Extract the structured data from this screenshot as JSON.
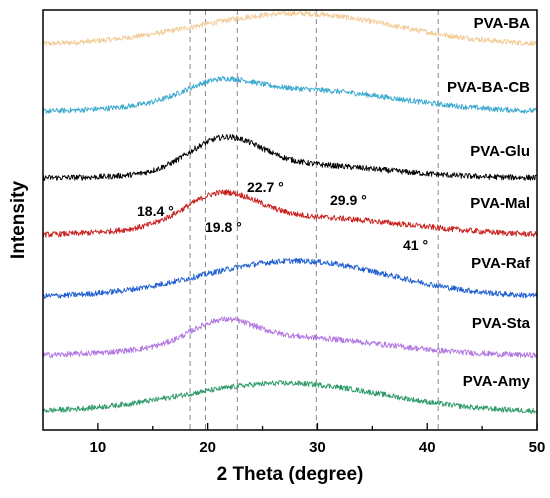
{
  "chart_data": {
    "type": "line",
    "title": "",
    "xlabel": "2 Theta (degree)",
    "ylabel": "Intensity",
    "xlim": [
      5,
      50
    ],
    "xticks": [
      "10",
      "20",
      "30",
      "40",
      "50"
    ],
    "grid": false,
    "legend": "labels placed at right end of each curve",
    "reference_lines_x": [
      18.4,
      19.8,
      22.7,
      29.9,
      41
    ],
    "annotations": [
      {
        "text": "18.4 °",
        "x": 18.4,
        "y": 0.61
      },
      {
        "text": "19.8 °",
        "x": 19.8,
        "y": 0.51
      },
      {
        "text": "22.7 °",
        "x": 22.7,
        "y": 0.84
      },
      {
        "text": "29.9 °",
        "x": 29.9,
        "y": 0.64
      },
      {
        "text": "41 °",
        "x": 41,
        "y": 0.46
      }
    ],
    "series": [
      {
        "name": "PVA-BA",
        "color": "#f1cb97",
        "peaks": [
          {
            "x": 28,
            "h": 0.35,
            "w": 9
          }
        ],
        "x": [
          5,
          10,
          15,
          20,
          25,
          28,
          30,
          35,
          40,
          45,
          50
        ],
        "values": [
          6.0,
          6.03,
          6.08,
          6.17,
          6.29,
          6.35,
          6.34,
          6.25,
          6.13,
          6.06,
          6.02
        ]
      },
      {
        "name": "PVA-BA-CB",
        "color": "#3ba8cf",
        "peaks": [
          {
            "x": 21,
            "h": 0.18,
            "w": 3
          },
          {
            "x": 28,
            "h": 0.25,
            "w": 9
          }
        ],
        "x": [
          5,
          10,
          15,
          20,
          21,
          25,
          28,
          30,
          35,
          40,
          45,
          50
        ],
        "values": [
          5.1,
          5.13,
          5.17,
          5.32,
          5.36,
          5.3,
          5.35,
          5.34,
          5.25,
          5.15,
          5.07,
          5.03
        ]
      },
      {
        "name": "PVA-Glu",
        "color": "#000000",
        "peaks": [
          {
            "x": 21.5,
            "h": 0.33,
            "w": 3.2
          },
          {
            "x": 28,
            "h": 0.14,
            "w": 8
          }
        ],
        "x": [
          5,
          10,
          15,
          20,
          21.5,
          25,
          28,
          30,
          35,
          40,
          45,
          50
        ],
        "values": [
          4.0,
          4.01,
          4.05,
          4.33,
          4.41,
          4.2,
          4.15,
          4.13,
          4.07,
          4.03,
          4.01,
          4.0
        ]
      },
      {
        "name": "PVA-Mal",
        "color": "#c8201d",
        "peaks": [
          {
            "x": 21.2,
            "h": 0.3,
            "w": 3.2
          },
          {
            "x": 28,
            "h": 0.2,
            "w": 10
          }
        ],
        "x": [
          5,
          10,
          15,
          20,
          21.2,
          25,
          28,
          30,
          35,
          40,
          45,
          50
        ],
        "values": [
          3.0,
          3.02,
          3.08,
          3.38,
          3.44,
          3.26,
          3.22,
          3.2,
          3.13,
          3.07,
          3.03,
          3.01
        ]
      },
      {
        "name": "PVA-Raf",
        "color": "#1f5fd0",
        "peaks": [
          {
            "x": 28,
            "h": 0.38,
            "w": 8.5
          }
        ],
        "x": [
          5,
          10,
          15,
          20,
          25,
          28,
          30,
          35,
          40,
          45,
          50
        ],
        "values": [
          2.0,
          2.01,
          2.06,
          2.16,
          2.32,
          2.38,
          2.37,
          2.25,
          2.12,
          2.04,
          2.01
        ]
      },
      {
        "name": "PVA-Sta",
        "color": "#b277e0",
        "peaks": [
          {
            "x": 21.3,
            "h": 0.22,
            "w": 2.8
          },
          {
            "x": 27,
            "h": 0.2,
            "w": 9
          }
        ],
        "x": [
          5,
          10,
          15,
          20,
          21.3,
          25,
          27,
          30,
          35,
          40,
          45,
          50
        ],
        "values": [
          1.0,
          1.02,
          1.06,
          1.24,
          1.32,
          1.26,
          1.24,
          1.2,
          1.12,
          1.05,
          1.02,
          1.0
        ]
      },
      {
        "name": "PVA-Amy",
        "color": "#2e9a6a",
        "peaks": [
          {
            "x": 27,
            "h": 0.32,
            "w": 9
          }
        ],
        "x": [
          5,
          10,
          15,
          20,
          25,
          27,
          30,
          35,
          40,
          45,
          50
        ],
        "values": [
          0.0,
          0.02,
          0.08,
          0.19,
          0.31,
          0.32,
          0.3,
          0.18,
          0.08,
          0.02,
          0.01
        ]
      }
    ]
  }
}
